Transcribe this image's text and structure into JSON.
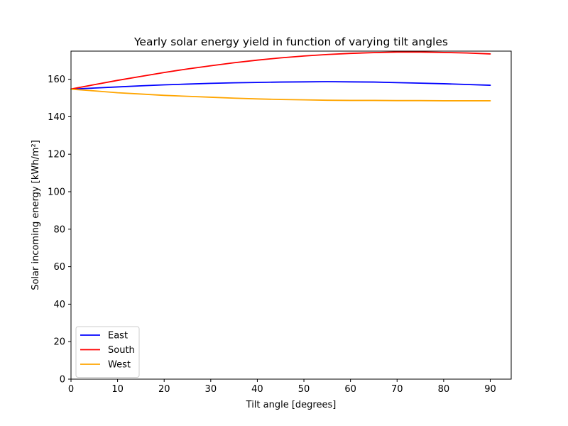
{
  "chart_data": {
    "type": "line",
    "title": "Yearly solar energy yield in function of varying tilt angles",
    "xlabel": "Tilt angle [degrees]",
    "ylabel": "Solar incoming energy [kWh/m²]",
    "xlim": [
      0,
      94.5
    ],
    "ylim": [
      0,
      175
    ],
    "xticks": [
      0,
      10,
      20,
      30,
      40,
      50,
      60,
      70,
      80,
      90
    ],
    "yticks": [
      0,
      20,
      40,
      60,
      80,
      100,
      120,
      140,
      160
    ],
    "grid": false,
    "legend_position": "lower-left",
    "x": [
      0,
      5,
      10,
      15,
      20,
      25,
      30,
      35,
      40,
      45,
      50,
      55,
      60,
      65,
      70,
      75,
      80,
      85,
      90
    ],
    "series": [
      {
        "name": "East",
        "color": "#0000ff",
        "values": [
          154.7,
          155.3,
          155.9,
          156.5,
          157.0,
          157.4,
          157.8,
          158.1,
          158.3,
          158.5,
          158.6,
          158.7,
          158.6,
          158.5,
          158.2,
          157.9,
          157.6,
          157.2,
          156.8
        ]
      },
      {
        "name": "South",
        "color": "#ff0000",
        "values": [
          154.8,
          157.1,
          159.4,
          161.5,
          163.6,
          165.5,
          167.2,
          168.8,
          170.2,
          171.4,
          172.4,
          173.2,
          173.8,
          174.2,
          174.5,
          174.5,
          174.3,
          174.0,
          173.5
        ]
      },
      {
        "name": "West",
        "color": "#ffa500",
        "values": [
          154.7,
          153.8,
          152.8,
          152.1,
          151.4,
          150.9,
          150.4,
          149.9,
          149.5,
          149.2,
          149.0,
          148.8,
          148.7,
          148.7,
          148.6,
          148.6,
          148.5,
          148.5,
          148.5
        ]
      }
    ]
  }
}
